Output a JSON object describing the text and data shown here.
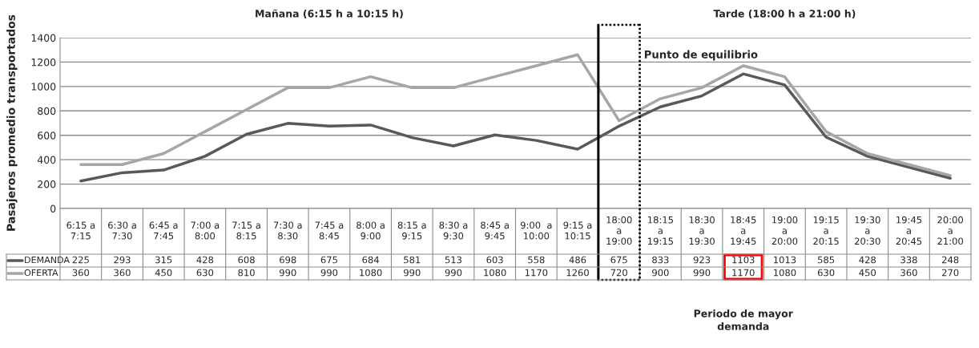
{
  "chart_data": {
    "type": "line",
    "ylabel": "Pasajeros promedio transportados",
    "categories": [
      "6:15 a\n7:15",
      "6:30 a\n7:30",
      "6:45 a\n7:45",
      "7:00 a\n8:00",
      "7:15 a\n8:15",
      "7:30 a\n8:30",
      "7:45 a\n8:45",
      "8:00 a\n9:00",
      "8:15 a\n9:15",
      "8:30 a\n9:30",
      "8:45 a\n9:45",
      "9:00  a\n10:00",
      "9:15 a\n10:15",
      "18:00\na\n19:00",
      "18:15\na\n19:15",
      "18:30\na\n19:30",
      "18:45\na\n19:45",
      "19:00\na\n20:00",
      "19:15\na\n20:15",
      "19:30\na\n20:30",
      "19:45\na\n20:45",
      "20:00\na\n21:00"
    ],
    "series": [
      {
        "name": "DEMANDA",
        "color": "#595959",
        "values": [
          225,
          293,
          315,
          428,
          608,
          698,
          675,
          684,
          581,
          513,
          603,
          558,
          486,
          675,
          833,
          923,
          1103,
          1013,
          585,
          428,
          338,
          248
        ]
      },
      {
        "name": "OFERTA",
        "color": "#a6a6a6",
        "values": [
          360,
          360,
          450,
          630,
          810,
          990,
          990,
          1080,
          990,
          990,
          1080,
          1170,
          1260,
          720,
          900,
          990,
          1170,
          1080,
          630,
          450,
          360,
          270
        ]
      }
    ],
    "ylim": [
      0,
      1400
    ],
    "yticks": [
      0,
      200,
      400,
      600,
      800,
      1000,
      1200,
      1400
    ],
    "grid": "y",
    "data_labels": true,
    "legend": "left",
    "annotations": [
      "Mañana (6:15 h a 10:15 h)",
      "Tarde (18:00 h a 21:00 h)",
      "Punto de equilibrio",
      "Periodo de mayor\ndemanda"
    ]
  }
}
